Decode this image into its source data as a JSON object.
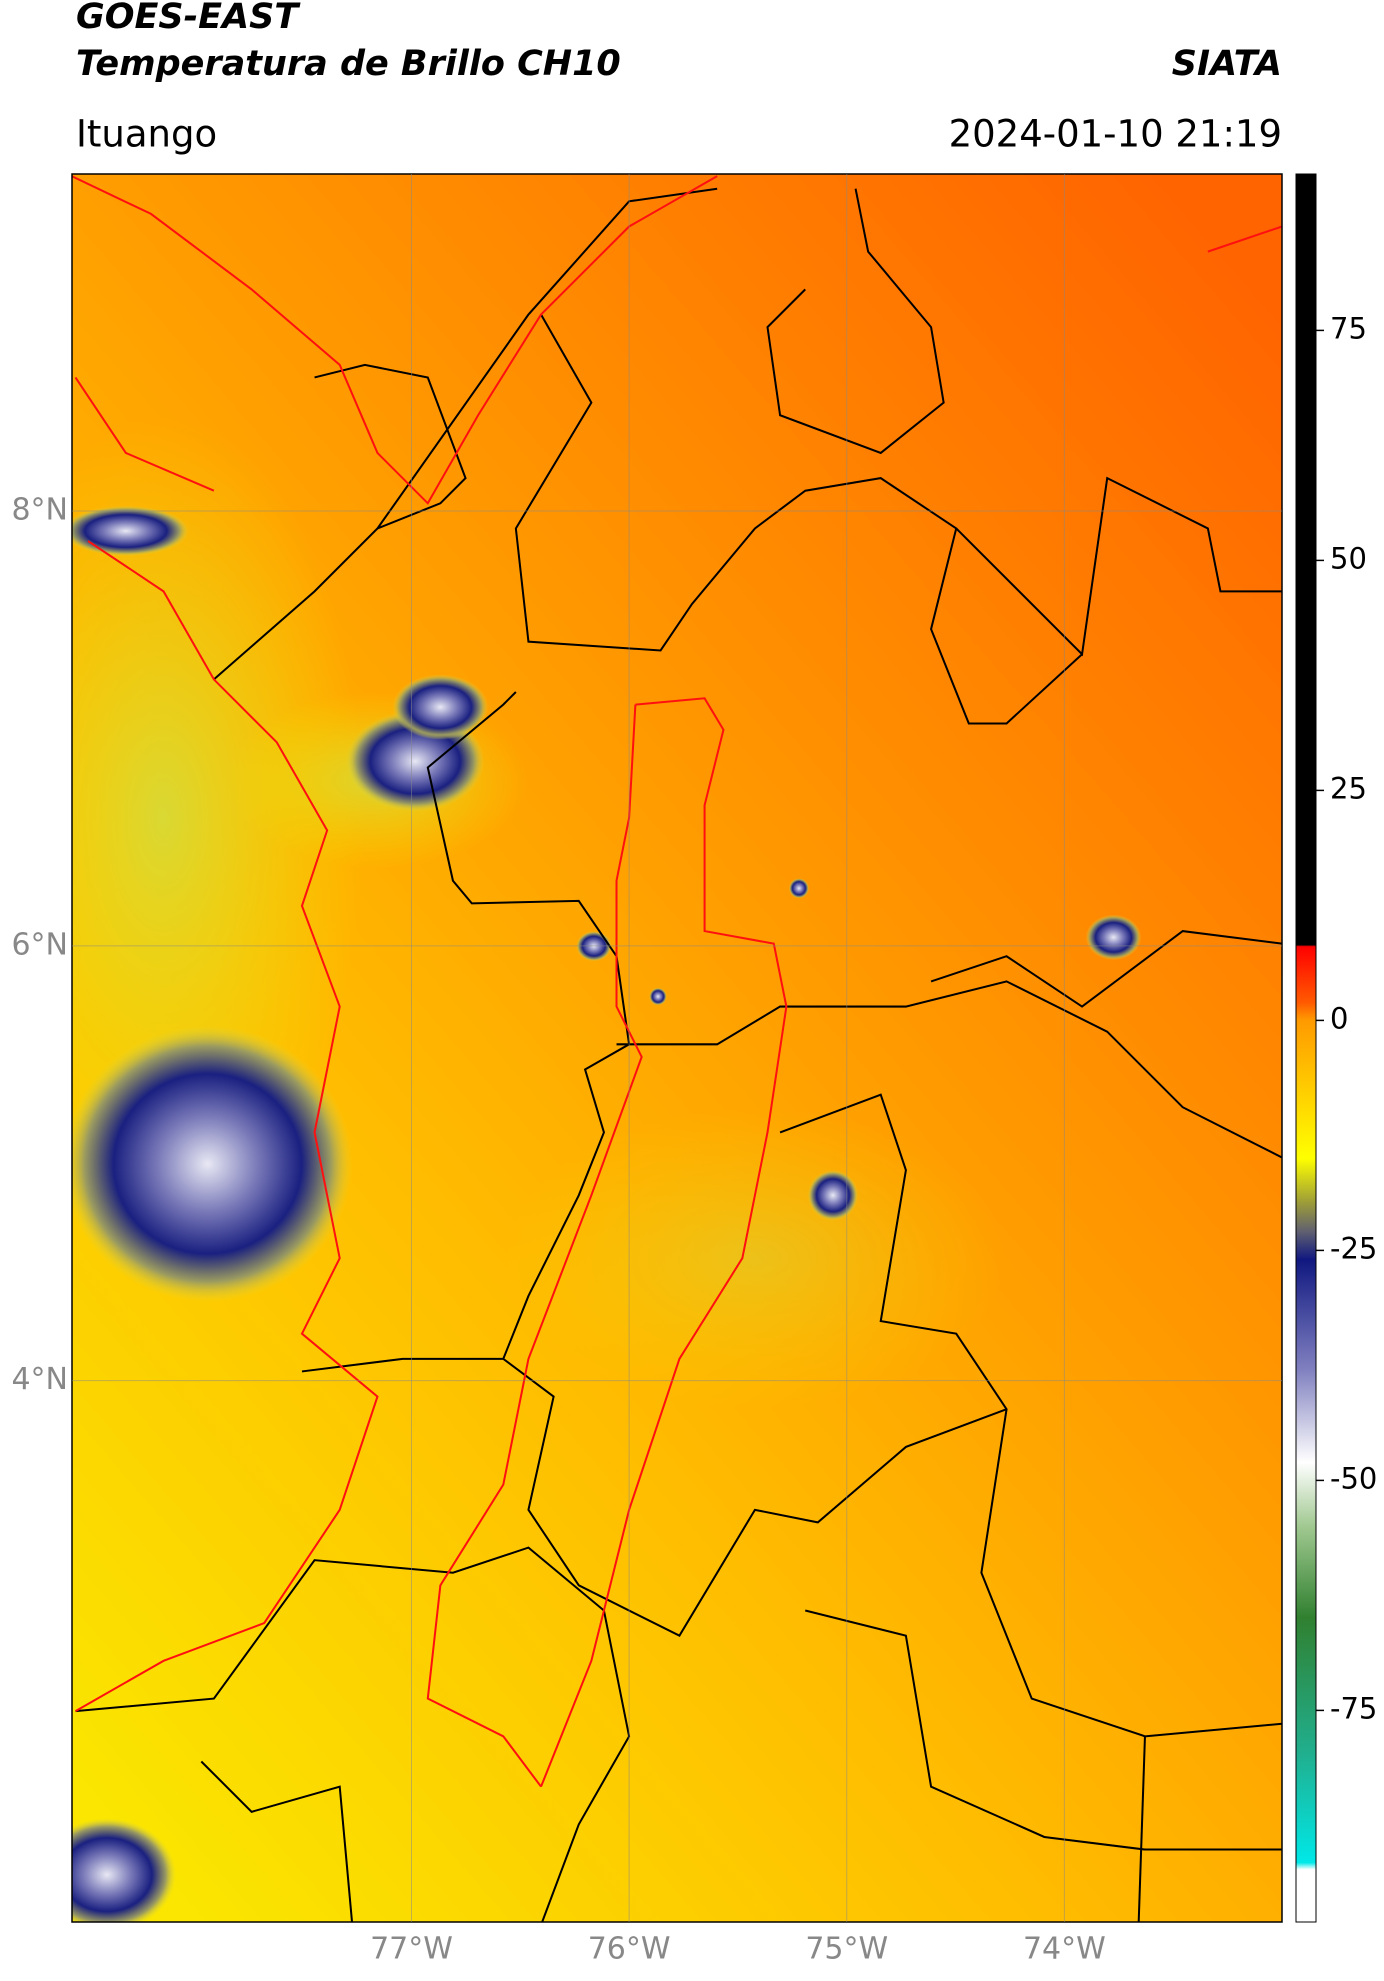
{
  "header": {
    "title": "GOES-EAST",
    "subtitle": "Temperatura de Brillo CH10",
    "location": "Ituango",
    "source": "SIATA",
    "datetime": "2024-01-10 21:19"
  },
  "chart_data": {
    "type": "map",
    "xlim": [
      -78.56,
      -73.0
    ],
    "xticks": [
      {
        "value": -77,
        "label": "77°W"
      },
      {
        "value": -76,
        "label": "76°W"
      },
      {
        "value": -75,
        "label": "75°W"
      },
      {
        "value": -74,
        "label": "74°W"
      }
    ],
    "ylim": [
      1.51,
      9.55
    ],
    "yticks": [
      {
        "value": 8,
        "label": "8°N"
      },
      {
        "value": 6,
        "label": "6°N"
      },
      {
        "value": 4,
        "label": "4°N"
      }
    ],
    "grid": true,
    "colorbar": {
      "clim": [
        -98,
        92
      ],
      "ticks": [
        75,
        50,
        25,
        0,
        -25,
        -50,
        -75
      ]
    }
  }
}
